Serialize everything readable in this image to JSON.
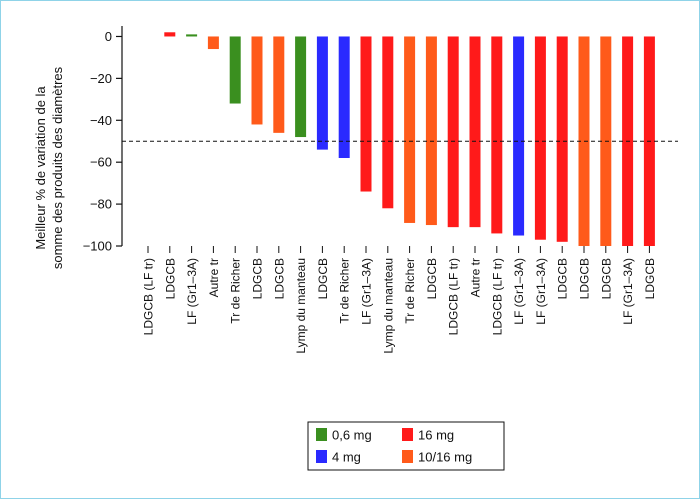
{
  "chart_data": {
    "type": "bar",
    "ylabel_lines": [
      "Meilleur % de variation de la",
      "somme des produits des diamètres"
    ],
    "ylim": [
      -100,
      5
    ],
    "yticks": [
      0,
      -20,
      -40,
      -60,
      -80,
      -100
    ],
    "reference_line": -50,
    "bars": [
      {
        "label": "LDGCB (LF tr)",
        "value": 0,
        "group": "16 mg"
      },
      {
        "label": "LDGCB",
        "value": 2,
        "group": "16 mg"
      },
      {
        "label": "LF (Gr1–3A)",
        "value": 1,
        "group": "0,6 mg"
      },
      {
        "label": "Autre tr",
        "value": -6,
        "group": "10/16 mg"
      },
      {
        "label": "Tr de Richer",
        "value": -32,
        "group": "0,6 mg"
      },
      {
        "label": "LDGCB",
        "value": -42,
        "group": "10/16 mg"
      },
      {
        "label": "LDGCB",
        "value": -46,
        "group": "10/16 mg"
      },
      {
        "label": "Lymp du manteau",
        "value": -48,
        "group": "0,6 mg"
      },
      {
        "label": "LDGCB",
        "value": -54,
        "group": "4 mg"
      },
      {
        "label": "Tr de Richer",
        "value": -58,
        "group": "4 mg"
      },
      {
        "label": "LF (Gr1–3A)",
        "value": -74,
        "group": "16 mg"
      },
      {
        "label": "Lymp du manteau",
        "value": -82,
        "group": "16 mg"
      },
      {
        "label": "Tr de Richer",
        "value": -89,
        "group": "10/16 mg"
      },
      {
        "label": "LDGCB",
        "value": -90,
        "group": "10/16 mg"
      },
      {
        "label": "LDGCB (LF tr)",
        "value": -91,
        "group": "16 mg"
      },
      {
        "label": "Autre tr",
        "value": -91,
        "group": "16 mg"
      },
      {
        "label": "LDGCB (LF tr)",
        "value": -94,
        "group": "16 mg"
      },
      {
        "label": "LF (Gr1–3A)",
        "value": -95,
        "group": "4 mg"
      },
      {
        "label": "LF (Gr1–3A)",
        "value": -97,
        "group": "16 mg"
      },
      {
        "label": "LDGCB",
        "value": -98,
        "group": "16 mg"
      },
      {
        "label": "LDGCB",
        "value": -100,
        "group": "10/16 mg"
      },
      {
        "label": "LDGCB",
        "value": -100,
        "group": "10/16 mg"
      },
      {
        "label": "LF (Gr1–3A)",
        "value": -100,
        "group": "16 mg"
      },
      {
        "label": "LDGCB",
        "value": -100,
        "group": "16 mg"
      }
    ],
    "legend": [
      {
        "label": "0,6 mg",
        "color": "#3a8f1f"
      },
      {
        "label": "16 mg",
        "color": "#ff1a1a"
      },
      {
        "label": "4 mg",
        "color": "#2a2aff"
      },
      {
        "label": "10/16 mg",
        "color": "#ff5a1a"
      }
    ],
    "colors": {
      "0,6 mg": "#3a8f1f",
      "4 mg": "#2a2aff",
      "16 mg": "#ff1a1a",
      "10/16 mg": "#ff5a1a"
    },
    "grid": false,
    "legend_position": "bottom-center"
  }
}
